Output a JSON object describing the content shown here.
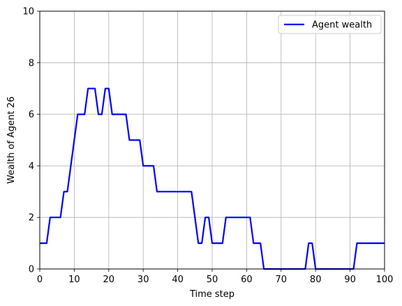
{
  "chart_data": {
    "type": "line",
    "xlabel": "Time step",
    "ylabel": "Wealth of Agent 26",
    "xlim": [
      0,
      100
    ],
    "ylim": [
      0,
      10
    ],
    "xticks": [
      0,
      10,
      20,
      30,
      40,
      50,
      60,
      70,
      80,
      90,
      100
    ],
    "yticks": [
      0,
      2,
      4,
      6,
      8,
      10
    ],
    "grid": true,
    "legend_position": "top-right",
    "series": [
      {
        "name": "Agent wealth",
        "color": "#0000ff",
        "x": [
          0,
          1,
          2,
          3,
          4,
          5,
          6,
          7,
          8,
          9,
          10,
          11,
          12,
          13,
          14,
          15,
          16,
          17,
          18,
          19,
          20,
          21,
          22,
          23,
          24,
          25,
          26,
          27,
          28,
          29,
          30,
          31,
          32,
          33,
          34,
          35,
          36,
          37,
          38,
          39,
          40,
          41,
          42,
          43,
          44,
          45,
          46,
          47,
          48,
          49,
          50,
          51,
          52,
          53,
          54,
          55,
          56,
          57,
          58,
          59,
          60,
          61,
          62,
          63,
          64,
          65,
          66,
          67,
          68,
          69,
          70,
          71,
          72,
          73,
          74,
          75,
          76,
          77,
          78,
          79,
          80,
          81,
          82,
          83,
          84,
          85,
          86,
          87,
          88,
          89,
          90,
          91,
          92,
          93,
          94,
          95,
          96,
          97,
          98,
          99,
          100
        ],
        "y": [
          1,
          1,
          1,
          2,
          2,
          2,
          2,
          3,
          3,
          4,
          5,
          6,
          6,
          6,
          7,
          7,
          7,
          6,
          6,
          7,
          7,
          6,
          6,
          6,
          6,
          6,
          5,
          5,
          5,
          5,
          4,
          4,
          4,
          4,
          3,
          3,
          3,
          3,
          3,
          3,
          3,
          3,
          3,
          3,
          3,
          2,
          1,
          1,
          2,
          2,
          1,
          1,
          1,
          1,
          2,
          2,
          2,
          2,
          2,
          2,
          2,
          2,
          1,
          1,
          1,
          0,
          0,
          0,
          0,
          0,
          0,
          0,
          0,
          0,
          0,
          0,
          0,
          0,
          1,
          1,
          0,
          0,
          0,
          0,
          0,
          0,
          0,
          0,
          0,
          0,
          0,
          0,
          1,
          1,
          1,
          1,
          1,
          1,
          1,
          1,
          1
        ]
      }
    ]
  }
}
